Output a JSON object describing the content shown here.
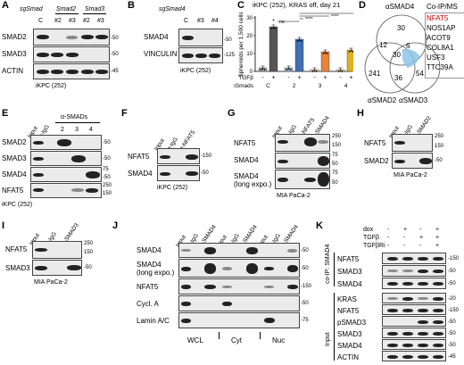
{
  "panels": {
    "A": {
      "label": "A",
      "header_italic": "sgSmad",
      "groups": [
        "Smad2",
        "Smad3"
      ],
      "lanes": [
        "C",
        "#2",
        "#3",
        "#2",
        "#3"
      ],
      "rows": [
        "SMAD2",
        "SMAD3",
        "ACTIN"
      ],
      "markers": [
        "-50",
        "-50",
        "-45"
      ],
      "footer": "iKPC (252)"
    },
    "B": {
      "label": "B",
      "header_italic": "sgSmad4",
      "lanes": [
        "C",
        "#3",
        "#4"
      ],
      "rows": [
        "SMAD4",
        "VINCULIN"
      ],
      "markers": [
        "-50",
        "-125"
      ],
      "footer": "iKPC (252)"
    },
    "C": {
      "label": "C",
      "title": "iKPC (252), KRAS off, day 21"
    },
    "D": {
      "label": "D",
      "circles": [
        "αSMAD4",
        "αSMAD2",
        "αSMAD3"
      ],
      "venn_values": [
        "30",
        "12",
        "30",
        "6",
        "241",
        "36",
        "54"
      ],
      "list_title": "Co-IP/MS",
      "list_items": [
        "NFAT5",
        "NOS1AP",
        "ACOT9",
        "COL8A1",
        "USF3",
        "TTC39A"
      ]
    },
    "E": {
      "label": "E",
      "group": "α-SMADs",
      "lanes": [
        "Input",
        "α-IgG",
        "2",
        "3",
        "4"
      ],
      "rows": [
        "SMAD2",
        "SMAD3",
        "SMAD4",
        "NFAT5"
      ],
      "markers": [
        "-50",
        "-50",
        "75",
        "-50",
        "250",
        "150"
      ],
      "footer": "iKPC (252)"
    },
    "F": {
      "label": "F",
      "lanes": [
        "Input",
        "α-IgG",
        "α-NFAT5"
      ],
      "rows": [
        "NFAT5",
        "SMAD4"
      ],
      "markers": [
        "-150",
        "-50"
      ],
      "footer": "iKPC (252)"
    },
    "G": {
      "label": "G",
      "lanes": [
        "Input",
        "α-IgG",
        "α-NFAT5",
        "α-SMAD4"
      ],
      "rows": [
        "NFAT5",
        "SMAD4",
        "SMAD4",
        "(long expo.)"
      ],
      "markers": [
        "250",
        "150",
        "75",
        "50",
        "75",
        "50"
      ],
      "footer": "MIA PaCa-2"
    },
    "H": {
      "label": "H",
      "lanes": [
        "Input",
        "α-IgG",
        "α-SMAD2"
      ],
      "rows": [
        "NFAT5",
        "SMAD2"
      ],
      "markers": [
        "250",
        "150",
        "-50"
      ],
      "footer": "MIA PaCa-2"
    },
    "I": {
      "label": "I",
      "lanes": [
        "Input",
        "α-IgG",
        "α-SMAD3"
      ],
      "rows": [
        "NFAT5",
        "SMAD3"
      ],
      "markers": [
        "250",
        "150",
        "-50"
      ],
      "footer": "MIA PaCa-2"
    },
    "J": {
      "label": "J",
      "lanes": [
        "Input",
        "α-IgG",
        "α-SMAD4",
        "Input",
        "α-IgG",
        "α-SMAD4",
        "Input",
        "α-IgG",
        "α-SMAD4"
      ],
      "rows": [
        "SMAD4",
        "SMAD4",
        "(long expo.)",
        "NFAT5",
        "Cycl. A",
        "Lamin A/C"
      ],
      "markers": [
        "-50",
        "-50",
        "-150",
        "-50",
        "-75"
      ],
      "fractions": [
        "WCL",
        "Cyt",
        "Nuc"
      ]
    },
    "K": {
      "label": "K",
      "conditions": [
        {
          "name": "dox",
          "values": [
            "-",
            "+",
            "-",
            "+"
          ]
        },
        {
          "name": "TGFβ",
          "values": [
            "-",
            "-",
            "+",
            "+"
          ]
        },
        {
          "name": "TGFβRi",
          "values": [
            "-",
            "-",
            "-",
            "+"
          ]
        }
      ],
      "ip_label": "co-IP: SMAD4",
      "input_label": "Input",
      "ip_rows": [
        "NFAT5",
        "SMAD3",
        "SMAD4"
      ],
      "input_rows": [
        "KRAS",
        "NFAT5",
        "pSMAD3",
        "SMAD3",
        "SMAD4",
        "ACTIN"
      ],
      "markers": [
        "-150",
        "-50",
        "-50",
        "-20",
        "-150",
        "-50",
        "-50",
        "-50",
        "-45"
      ]
    }
  },
  "chart_data": {
    "type": "bar",
    "title": "iKPC (252), KRAS off, day 21",
    "ylabel": "Spheroids per 1,500 cells",
    "ylim": [
      0,
      30
    ],
    "yticks": [
      0,
      10,
      20,
      30
    ],
    "row_labels": [
      "TGFβ",
      "shSmads"
    ],
    "tgfb": [
      "-",
      "+",
      "-",
      "+",
      "-",
      "+",
      "-",
      "+"
    ],
    "shsmad_groups": [
      "C",
      "2",
      "3",
      "4"
    ],
    "values": [
      2,
      25,
      2,
      18,
      1,
      11,
      1,
      12
    ],
    "bar_colors": [
      "#a9a9a9",
      "#555555",
      "#9fb8de",
      "#3f6fb5",
      "#f3c9a0",
      "#e8843a",
      "#f5e2a0",
      "#e0b020"
    ],
    "significance": [
      "*",
      "ns",
      "****",
      "****",
      "****"
    ]
  }
}
